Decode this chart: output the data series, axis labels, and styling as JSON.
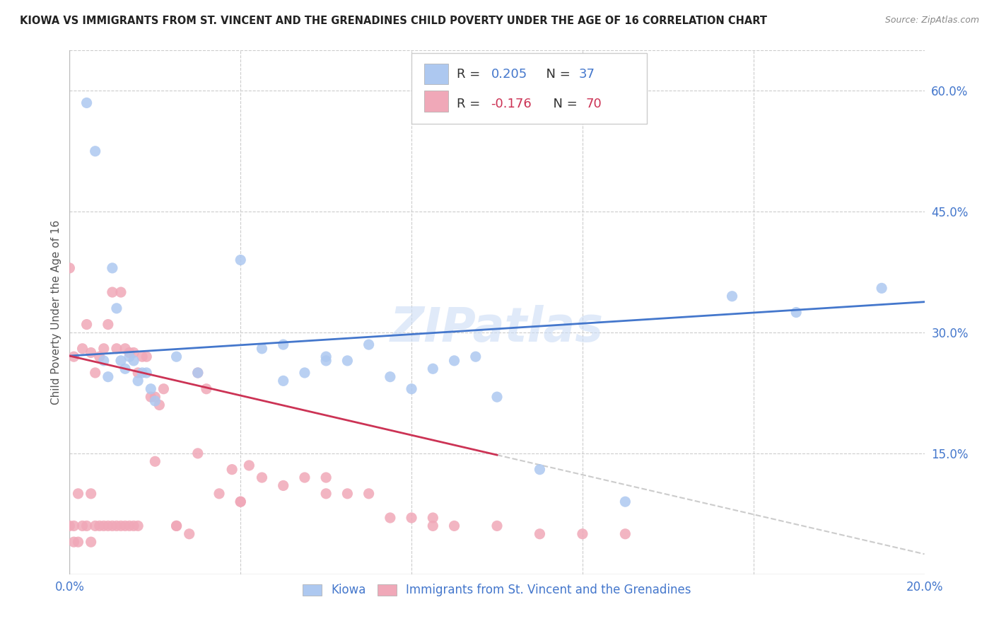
{
  "title": "KIOWA VS IMMIGRANTS FROM ST. VINCENT AND THE GRENADINES CHILD POVERTY UNDER THE AGE OF 16 CORRELATION CHART",
  "source": "Source: ZipAtlas.com",
  "ylabel": "Child Poverty Under the Age of 16",
  "xlim": [
    0.0,
    0.2
  ],
  "ylim": [
    0.0,
    0.65
  ],
  "yticks_right": [
    0.0,
    0.15,
    0.3,
    0.45,
    0.6
  ],
  "yticklabels_right": [
    "",
    "15.0%",
    "30.0%",
    "45.0%",
    "60.0%"
  ],
  "kiowa_color": "#adc8f0",
  "immigrants_color": "#f0a8b8",
  "kiowa_line_color": "#4477cc",
  "immigrants_line_color": "#cc3355",
  "dashed_line_color": "#cccccc",
  "background_color": "#ffffff",
  "watermark": "ZIPatlas",
  "kiowa_x": [
    0.004,
    0.006,
    0.008,
    0.009,
    0.01,
    0.011,
    0.012,
    0.013,
    0.014,
    0.015,
    0.016,
    0.017,
    0.018,
    0.019,
    0.02,
    0.025,
    0.03,
    0.04,
    0.05,
    0.055,
    0.06,
    0.065,
    0.07,
    0.08,
    0.1,
    0.11,
    0.13,
    0.155,
    0.17,
    0.19,
    0.05,
    0.045,
    0.06,
    0.075,
    0.085,
    0.09,
    0.095
  ],
  "kiowa_y": [
    0.585,
    0.525,
    0.265,
    0.245,
    0.38,
    0.33,
    0.265,
    0.255,
    0.27,
    0.265,
    0.24,
    0.25,
    0.25,
    0.23,
    0.215,
    0.27,
    0.25,
    0.39,
    0.24,
    0.25,
    0.27,
    0.265,
    0.285,
    0.23,
    0.22,
    0.13,
    0.09,
    0.345,
    0.325,
    0.355,
    0.285,
    0.28,
    0.265,
    0.245,
    0.255,
    0.265,
    0.27
  ],
  "immigrants_x": [
    0.0,
    0.0,
    0.001,
    0.001,
    0.001,
    0.002,
    0.002,
    0.003,
    0.003,
    0.004,
    0.004,
    0.005,
    0.005,
    0.005,
    0.006,
    0.006,
    0.007,
    0.007,
    0.008,
    0.008,
    0.009,
    0.009,
    0.01,
    0.01,
    0.011,
    0.011,
    0.012,
    0.012,
    0.013,
    0.013,
    0.014,
    0.014,
    0.015,
    0.015,
    0.016,
    0.016,
    0.017,
    0.018,
    0.019,
    0.02,
    0.021,
    0.022,
    0.025,
    0.028,
    0.03,
    0.032,
    0.035,
    0.038,
    0.04,
    0.042,
    0.045,
    0.05,
    0.055,
    0.06,
    0.065,
    0.07,
    0.08,
    0.085,
    0.09,
    0.1,
    0.11,
    0.12,
    0.13,
    0.04,
    0.06,
    0.075,
    0.085,
    0.02,
    0.025,
    0.03
  ],
  "immigrants_y": [
    0.38,
    0.06,
    0.27,
    0.06,
    0.04,
    0.1,
    0.04,
    0.06,
    0.28,
    0.31,
    0.06,
    0.275,
    0.1,
    0.04,
    0.25,
    0.06,
    0.27,
    0.06,
    0.28,
    0.06,
    0.31,
    0.06,
    0.35,
    0.06,
    0.28,
    0.06,
    0.35,
    0.06,
    0.28,
    0.06,
    0.275,
    0.06,
    0.275,
    0.06,
    0.25,
    0.06,
    0.27,
    0.27,
    0.22,
    0.22,
    0.21,
    0.23,
    0.06,
    0.05,
    0.15,
    0.23,
    0.1,
    0.13,
    0.09,
    0.135,
    0.12,
    0.11,
    0.12,
    0.12,
    0.1,
    0.1,
    0.07,
    0.07,
    0.06,
    0.06,
    0.05,
    0.05,
    0.05,
    0.09,
    0.1,
    0.07,
    0.06,
    0.14,
    0.06,
    0.25
  ]
}
